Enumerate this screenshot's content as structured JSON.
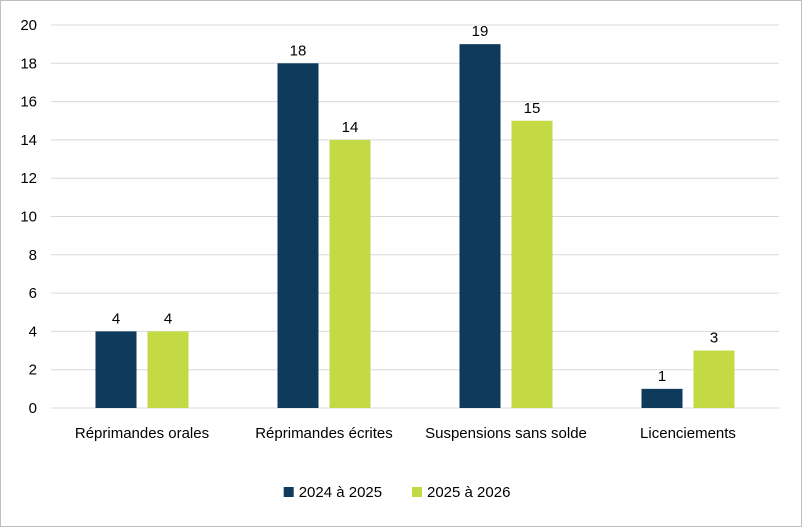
{
  "chart_data": {
    "type": "bar",
    "categories": [
      "Réprimandes orales",
      "Réprimandes écrites",
      "Suspensions sans solde",
      "Licenciements"
    ],
    "series": [
      {
        "name": "2024 à 2025",
        "color": "#0e3a5c",
        "values": [
          4,
          18,
          19,
          1
        ]
      },
      {
        "name": "2025 à 2026",
        "color": "#c4da45",
        "values": [
          4,
          14,
          15,
          3
        ]
      }
    ],
    "title": "",
    "xlabel": "",
    "ylabel": "",
    "ylim": [
      0,
      20
    ],
    "yticks": [
      0,
      2,
      4,
      6,
      8,
      10,
      12,
      14,
      16,
      18,
      20
    ],
    "grid": true,
    "gridline_color": "#d9d9d9",
    "legend_position": "bottom"
  }
}
